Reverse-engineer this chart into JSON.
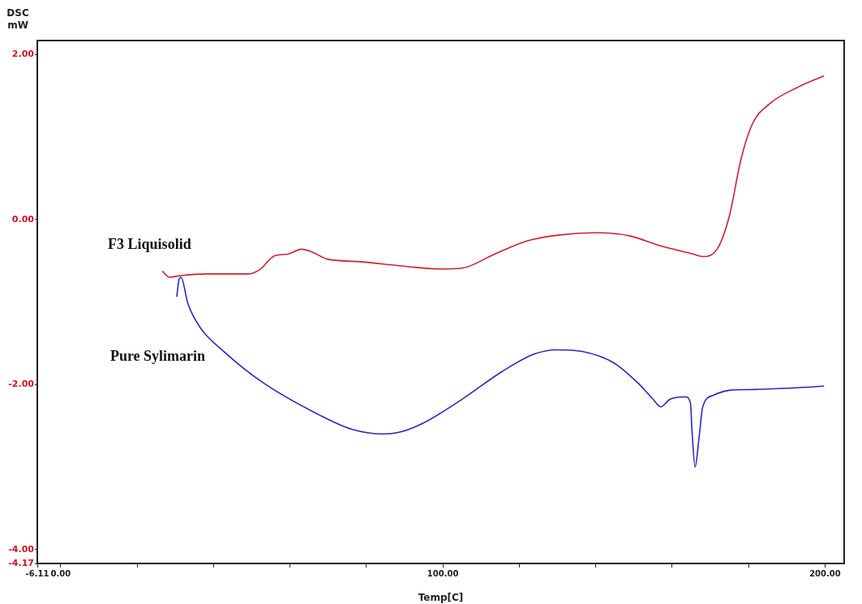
{
  "chart_data": {
    "type": "line",
    "ylabel": "DSC mW",
    "xlabel": "Temp[C]",
    "xlim": [
      -6.11,
      205
    ],
    "xticks": [
      {
        "value": -6.11,
        "label": "-6.11"
      },
      {
        "value": 0,
        "label": "0.00"
      },
      {
        "value": 20,
        "label": null
      },
      {
        "value": 40,
        "label": null
      },
      {
        "value": 60,
        "label": null
      },
      {
        "value": 80,
        "label": null
      },
      {
        "value": 100,
        "label": "100.00"
      },
      {
        "value": 120,
        "label": null
      },
      {
        "value": 140,
        "label": null
      },
      {
        "value": 160,
        "label": null
      },
      {
        "value": 180,
        "label": null
      },
      {
        "value": 200,
        "label": "200.00"
      }
    ],
    "ylim": [
      -4.17,
      2.17
    ],
    "yticks": [
      {
        "value": -4.17,
        "label": "-4.17"
      },
      {
        "value": -4,
        "label": "-4.00"
      },
      {
        "value": -2,
        "label": "-2.00"
      },
      {
        "value": 0,
        "label": "0.00"
      },
      {
        "value": 2,
        "label": "2.00"
      }
    ],
    "grid": false,
    "legend": false,
    "marker": "none",
    "line_style": "solid",
    "series": [
      {
        "name": "F3 Liquisolid",
        "color": "#d02030",
        "x": [
          26.7,
          28.5,
          31.3,
          38.5,
          49,
          52,
          56,
          59.4,
          63,
          65.6,
          69.8,
          78,
          88.5,
          99,
          105,
          113.5,
          122,
          130,
          140.6,
          149,
          157,
          165.6,
          168,
          172,
          175,
          178,
          181,
          185.4,
          192.7,
          199.6
        ],
        "values": [
          -0.63,
          -0.7,
          -0.68,
          -0.66,
          -0.66,
          -0.61,
          -0.44,
          -0.42,
          -0.36,
          -0.39,
          -0.48,
          -0.51,
          -0.56,
          -0.6,
          -0.59,
          -0.42,
          -0.26,
          -0.19,
          -0.16,
          -0.2,
          -0.32,
          -0.42,
          -0.45,
          -0.34,
          0.05,
          0.73,
          1.16,
          1.4,
          1.6,
          1.74
        ]
      },
      {
        "name": "Pure Sylimarin",
        "color": "#2828c0",
        "x": [
          30.4,
          31,
          31.5,
          33.3,
          36.5,
          42.7,
          53,
          67.7,
          76,
          84.4,
          88.5,
          94.8,
          105,
          115.6,
          124,
          130,
          136.5,
          144.8,
          151,
          155,
          157,
          159.4,
          163.5,
          164.8,
          165.2,
          166,
          167,
          168,
          170.8,
          175,
          182,
          192.7,
          199.6
        ],
        "values": [
          -0.93,
          -0.72,
          -0.7,
          -1.02,
          -1.31,
          -1.6,
          -1.98,
          -2.37,
          -2.54,
          -2.6,
          -2.58,
          -2.47,
          -2.18,
          -1.84,
          -1.63,
          -1.58,
          -1.6,
          -1.74,
          -1.98,
          -2.18,
          -2.27,
          -2.18,
          -2.15,
          -2.23,
          -2.57,
          -3.0,
          -2.66,
          -2.27,
          -2.13,
          -2.07,
          -2.06,
          -2.04,
          -2.02
        ]
      }
    ]
  }
}
